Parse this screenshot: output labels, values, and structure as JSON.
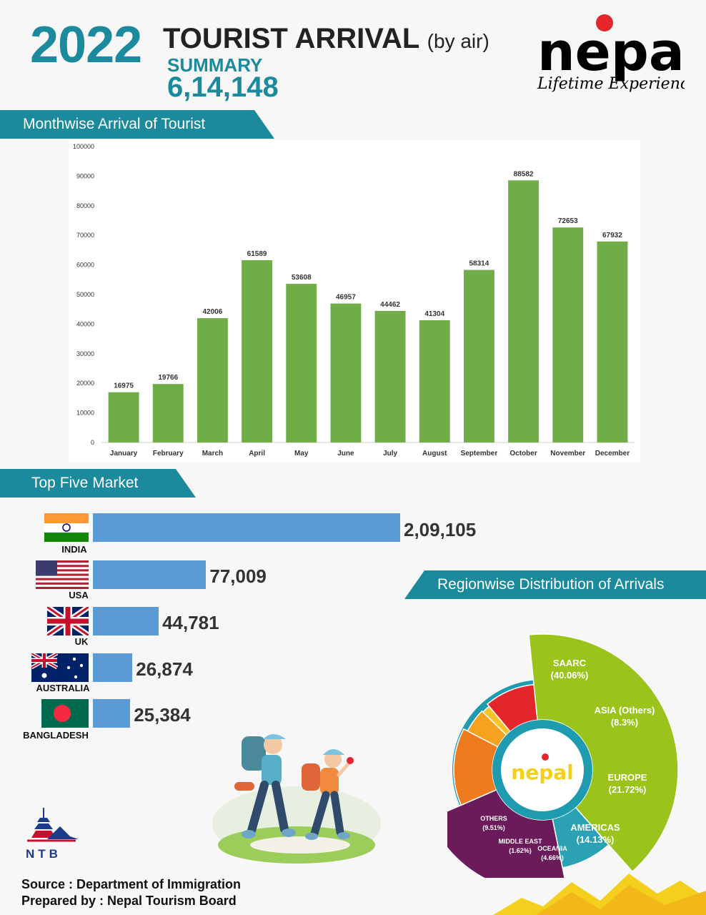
{
  "header": {
    "year": "2022",
    "title": "TOURIST ARRIVAL",
    "title_suffix": "(by air)",
    "summary_label": "SUMMARY",
    "summary_value": "6,14,148"
  },
  "logo": {
    "word": "nepal",
    "tagline": "Lifetime Experiences!"
  },
  "sections": {
    "monthwise": "Monthwise Arrival of Tourist",
    "top_markets": "Top Five Market",
    "regionwise": "Regionwise Distribution of Arrivals"
  },
  "ntb_logo_text": "NTB",
  "footer": {
    "source": "Source : Department of Immigration",
    "prepared": "Prepared by : Nepal Tourism Board"
  },
  "colors": {
    "teal": "#1b8a9c",
    "bar_green": "#70ad47",
    "market_blue": "#5b9bd5",
    "logo_yellow": "#f4cf1c"
  },
  "chart_data": [
    {
      "type": "bar",
      "title": "Monthwise Arrival of Tourist",
      "categories": [
        "January",
        "February",
        "March",
        "April",
        "May",
        "June",
        "July",
        "August",
        "September",
        "October",
        "November",
        "December"
      ],
      "values": [
        16975,
        19766,
        42006,
        61589,
        53608,
        46957,
        44462,
        41304,
        58314,
        88582,
        72653,
        67932
      ],
      "yticks": [
        "0",
        "10000",
        "20000",
        "30000",
        "40000",
        "50000",
        "60000",
        "70000",
        "80000",
        "90000",
        "100000"
      ],
      "ylim": [
        0,
        100000
      ],
      "data_labels": true,
      "grid": false,
      "color": "#70ad47"
    },
    {
      "type": "bar",
      "orientation": "horizontal",
      "title": "Top Five Market",
      "categories": [
        "INDIA",
        "USA",
        "UK",
        "AUSTRALIA",
        "BANGLADESH"
      ],
      "values": [
        209105,
        77009,
        44781,
        26874,
        25384
      ],
      "value_labels": [
        "2,09,105",
        "77,009",
        "44,781",
        "26,874",
        "25,384"
      ],
      "color": "#5b9bd5"
    },
    {
      "type": "pie",
      "title": "Regionwise Distribution of Arrivals",
      "center_label": "nepal",
      "slices": [
        {
          "label": "SAARC",
          "pct_label": "(40.06%)",
          "value": 40.06,
          "color": "#9ac31c"
        },
        {
          "label": "ASIA (Others)",
          "pct_label": "(8.3%)",
          "value": 8.3,
          "color": "#2aa2b4"
        },
        {
          "label": "EUROPE",
          "pct_label": "(21.72%)",
          "value": 21.72,
          "color": "#6b1a5a"
        },
        {
          "label": "AMERICAS",
          "pct_label": "(14.13%)",
          "value": 14.13,
          "color": "#f07a1e"
        },
        {
          "label": "OCEANIA",
          "pct_label": "(4.66%)",
          "value": 4.66,
          "color": "#f6a21e"
        },
        {
          "label": "MIDDLE EAST",
          "pct_label": "(1.62%)",
          "value": 1.62,
          "color": "#f7c32a"
        },
        {
          "label": "OTHERS",
          "pct_label": "(9.51%)",
          "value": 9.51,
          "color": "#e3262b"
        }
      ]
    }
  ]
}
